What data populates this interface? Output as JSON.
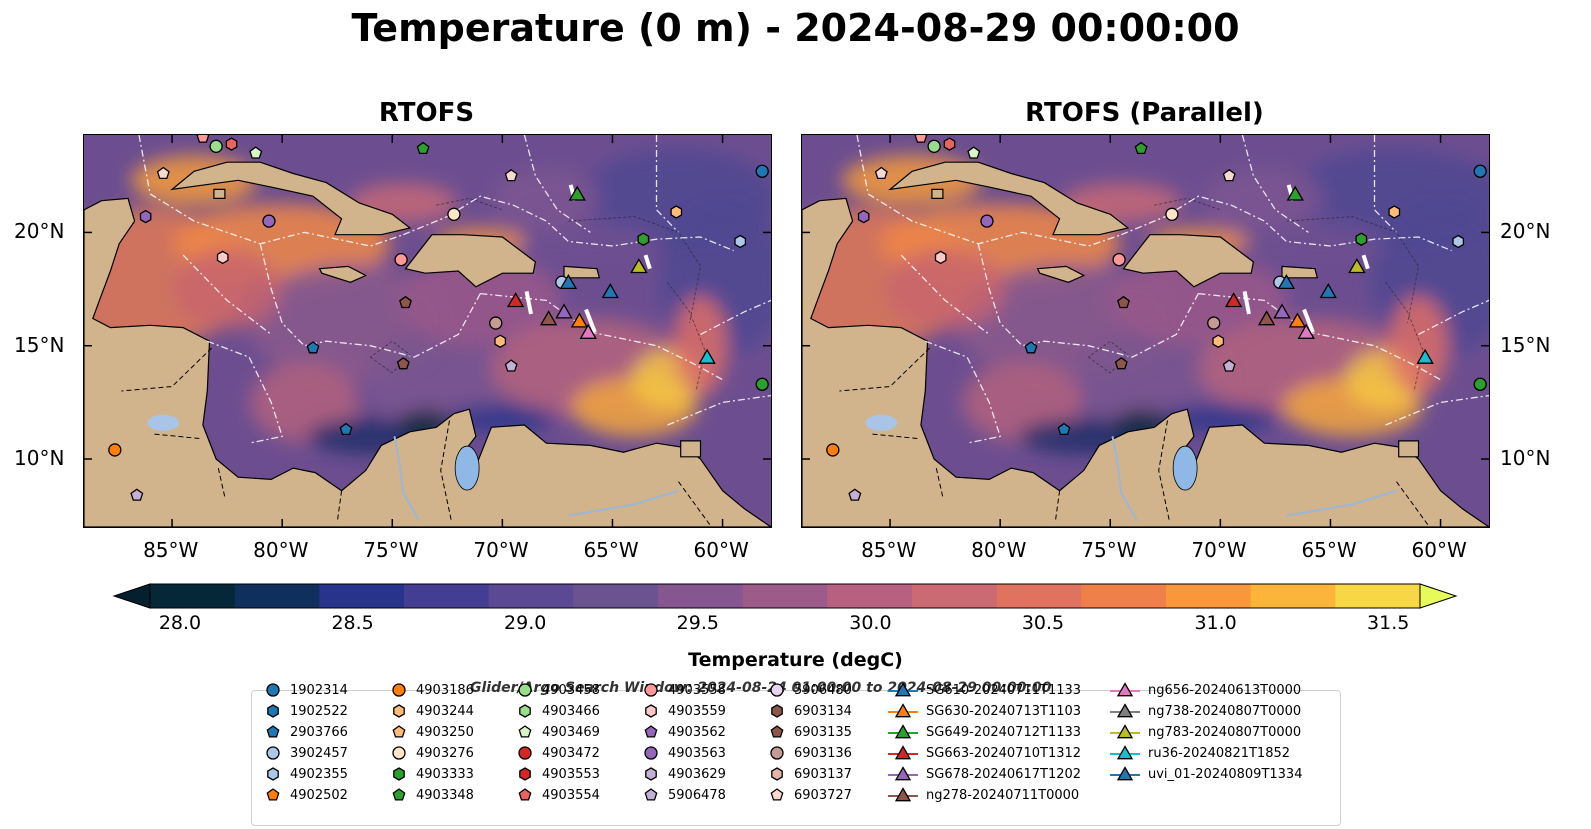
{
  "title": "Temperature (0 m) - 2024-08-29 00:00:00",
  "panels": [
    {
      "title": "RTOFS"
    },
    {
      "title": "RTOFS (Parallel)"
    }
  ],
  "lon_ticks": [
    "85°W",
    "80°W",
    "75°W",
    "70°W",
    "65°W",
    "60°W"
  ],
  "lat_ticks": [
    "20°N",
    "15°N",
    "10°N"
  ],
  "colorbar": {
    "label": "Temperature (degC)",
    "ticks": [
      "28.0",
      "28.5",
      "29.0",
      "29.5",
      "30.0",
      "30.5",
      "31.0",
      "31.5"
    ],
    "colors": [
      "#062737",
      "#0f2f5c",
      "#28348c",
      "#433d94",
      "#5b4a93",
      "#6b5392",
      "#85568f",
      "#9d5b8a",
      "#b76080",
      "#cc6a74",
      "#e0735f",
      "#ef8049",
      "#f8983b",
      "#fcb43a",
      "#f7d746"
    ],
    "extend_low": "#041f2d",
    "extend_high": "#e8fa5b"
  },
  "legend": {
    "title": "Glider/Argo Search Window: 2024-08-24 01:00:00 to 2024-08-29 00:00:00",
    "columns": [
      [
        {
          "label": "1902314",
          "shape": "circle",
          "color": "#1f77b4"
        },
        {
          "label": "1902522",
          "shape": "hexagon",
          "color": "#1f77b4"
        },
        {
          "label": "2903766",
          "shape": "pentagon",
          "color": "#1f77b4"
        },
        {
          "label": "3902457",
          "shape": "circle",
          "color": "#aec7e8"
        },
        {
          "label": "4902355",
          "shape": "hexagon",
          "color": "#aec7e8"
        },
        {
          "label": "4902502",
          "shape": "pentagon",
          "color": "#ff7f0e"
        }
      ],
      [
        {
          "label": "4903186",
          "shape": "circle",
          "color": "#ff7f0e"
        },
        {
          "label": "4903244",
          "shape": "hexagon",
          "color": "#ffbb78"
        },
        {
          "label": "4903250",
          "shape": "pentagon",
          "color": "#ffbb78"
        },
        {
          "label": "4903276",
          "shape": "circle",
          "color": "#ffe6c9"
        },
        {
          "label": "4903333",
          "shape": "hexagon",
          "color": "#2ca02c"
        },
        {
          "label": "4903348",
          "shape": "pentagon",
          "color": "#2ca02c"
        }
      ],
      [
        {
          "label": "4903458",
          "shape": "circle",
          "color": "#98df8a"
        },
        {
          "label": "4903466",
          "shape": "hexagon",
          "color": "#98df8a"
        },
        {
          "label": "4903469",
          "shape": "pentagon",
          "color": "#d8f5c8"
        },
        {
          "label": "4903472",
          "shape": "circle",
          "color": "#d62728"
        },
        {
          "label": "4903553",
          "shape": "hexagon",
          "color": "#d62728"
        },
        {
          "label": "4903554",
          "shape": "pentagon",
          "color": "#e8625f"
        }
      ],
      [
        {
          "label": "4903558",
          "shape": "circle",
          "color": "#ff9896"
        },
        {
          "label": "4903559",
          "shape": "hexagon",
          "color": "#ffc9c7"
        },
        {
          "label": "4903562",
          "shape": "pentagon",
          "color": "#9467bd"
        },
        {
          "label": "4903563",
          "shape": "circle",
          "color": "#9467bd"
        },
        {
          "label": "4903629",
          "shape": "hexagon",
          "color": "#c5b0d5"
        },
        {
          "label": "5906478",
          "shape": "pentagon",
          "color": "#c5b0d5"
        }
      ],
      [
        {
          "label": "5906480",
          "shape": "circle",
          "color": "#e6d5f0"
        },
        {
          "label": "6903134",
          "shape": "hexagon",
          "color": "#8c564b"
        },
        {
          "label": "6903135",
          "shape": "pentagon",
          "color": "#8c564b"
        },
        {
          "label": "6903136",
          "shape": "circle",
          "color": "#c49c94"
        },
        {
          "label": "6903137",
          "shape": "hexagon",
          "color": "#e3b5a8"
        },
        {
          "label": "6903727",
          "shape": "pentagon",
          "color": "#f7d9cf"
        }
      ],
      [
        {
          "label": "SG610-20240711T1133",
          "shape": "triangle",
          "color": "#1f77b4"
        },
        {
          "label": "SG630-20240713T1103",
          "shape": "triangle",
          "color": "#ff7f0e"
        },
        {
          "label": "SG649-20240712T1133",
          "shape": "triangle",
          "color": "#2ca02c"
        },
        {
          "label": "SG663-20240710T1312",
          "shape": "triangle",
          "color": "#d62728"
        },
        {
          "label": "SG678-20240617T1202",
          "shape": "triangle",
          "color": "#9467bd"
        },
        {
          "label": "ng278-20240711T0000",
          "shape": "triangle",
          "color": "#8c564b"
        }
      ],
      [
        {
          "label": "ng656-20240613T0000",
          "shape": "triangle",
          "color": "#e377c2"
        },
        {
          "label": "ng738-20240807T0000",
          "shape": "triangle",
          "color": "#7f7f7f"
        },
        {
          "label": "ng783-20240807T0000",
          "shape": "triangle",
          "color": "#bcbd22"
        },
        {
          "label": "ru36-20240821T1852",
          "shape": "triangle",
          "color": "#17becf"
        },
        {
          "label": "uvi_01-20240809T1334",
          "shape": "triangle",
          "color": "#1f77b4"
        }
      ]
    ]
  },
  "markers": [
    {
      "lon": -83.6,
      "lat": 24.2,
      "shape": "pentagon",
      "color": "#ff9896"
    },
    {
      "lon": -83.0,
      "lat": 23.8,
      "shape": "circle",
      "color": "#98df8a"
    },
    {
      "lon": -82.3,
      "lat": 23.9,
      "shape": "hexagon",
      "color": "#e8625f"
    },
    {
      "lon": -81.2,
      "lat": 23.5,
      "shape": "pentagon",
      "color": "#d8f5c8"
    },
    {
      "lon": -85.4,
      "lat": 22.6,
      "shape": "pentagon",
      "color": "#f7d9cf"
    },
    {
      "lon": -86.2,
      "lat": 20.7,
      "shape": "hexagon",
      "color": "#9467bd"
    },
    {
      "lon": -80.6,
      "lat": 20.5,
      "shape": "circle",
      "color": "#9467bd"
    },
    {
      "lon": -82.7,
      "lat": 18.9,
      "shape": "hexagon",
      "color": "#ffc9c7"
    },
    {
      "lon": -74.6,
      "lat": 18.8,
      "shape": "circle",
      "color": "#ff9896"
    },
    {
      "lon": -72.2,
      "lat": 20.8,
      "shape": "circle",
      "color": "#ffe6c9"
    },
    {
      "lon": -73.6,
      "lat": 23.7,
      "shape": "pentagon",
      "color": "#2ca02c"
    },
    {
      "lon": -69.6,
      "lat": 22.5,
      "shape": "pentagon",
      "color": "#f7d9cf"
    },
    {
      "lon": -74.4,
      "lat": 16.9,
      "shape": "pentagon",
      "color": "#8c564b"
    },
    {
      "lon": -70.3,
      "lat": 16.0,
      "shape": "circle",
      "color": "#c49c94"
    },
    {
      "lon": -70.1,
      "lat": 15.2,
      "shape": "hexagon",
      "color": "#ffbb78"
    },
    {
      "lon": -69.6,
      "lat": 14.1,
      "shape": "pentagon",
      "color": "#c5b0d5"
    },
    {
      "lon": -74.5,
      "lat": 14.2,
      "shape": "pentagon",
      "color": "#8c564b"
    },
    {
      "lon": -78.6,
      "lat": 14.9,
      "shape": "pentagon",
      "color": "#1f77b4"
    },
    {
      "lon": -77.1,
      "lat": 11.3,
      "shape": "pentagon",
      "color": "#1f77b4"
    },
    {
      "lon": -87.6,
      "lat": 10.4,
      "shape": "circle",
      "color": "#ff7f0e"
    },
    {
      "lon": -86.6,
      "lat": 8.4,
      "shape": "pentagon",
      "color": "#c5b0d5"
    },
    {
      "lon": -62.1,
      "lat": 20.9,
      "shape": "hexagon",
      "color": "#ffbb78"
    },
    {
      "lon": -63.6,
      "lat": 19.7,
      "shape": "hexagon",
      "color": "#2ca02c"
    },
    {
      "lon": -59.2,
      "lat": 19.6,
      "shape": "hexagon",
      "color": "#aec7e8"
    },
    {
      "lon": -58.2,
      "lat": 22.7,
      "shape": "circle",
      "color": "#1f77b4"
    },
    {
      "lon": -58.2,
      "lat": 13.3,
      "shape": "circle",
      "color": "#2ca02c"
    },
    {
      "lon": -67.3,
      "lat": 17.8,
      "shape": "circle",
      "color": "#aec7e8"
    },
    {
      "lon": -66.6,
      "lat": 21.7,
      "shape": "triangle",
      "color": "#2ca02c"
    },
    {
      "lon": -63.8,
      "lat": 18.5,
      "shape": "triangle",
      "color": "#bcbd22"
    },
    {
      "lon": -67.0,
      "lat": 17.8,
      "shape": "triangle",
      "color": "#1f77b4"
    },
    {
      "lon": -65.1,
      "lat": 17.4,
      "shape": "triangle",
      "color": "#1f77b4"
    },
    {
      "lon": -69.4,
      "lat": 17.0,
      "shape": "triangle",
      "color": "#d62728"
    },
    {
      "lon": -67.2,
      "lat": 16.5,
      "shape": "triangle",
      "color": "#9467bd"
    },
    {
      "lon": -67.9,
      "lat": 16.2,
      "shape": "triangle",
      "color": "#8c564b"
    },
    {
      "lon": -66.5,
      "lat": 16.1,
      "shape": "triangle",
      "color": "#ff7f0e"
    },
    {
      "lon": -66.1,
      "lat": 15.6,
      "shape": "triangle",
      "color": "#e377c2"
    },
    {
      "lon": -60.7,
      "lat": 14.5,
      "shape": "triangle",
      "color": "#17becf"
    }
  ]
}
